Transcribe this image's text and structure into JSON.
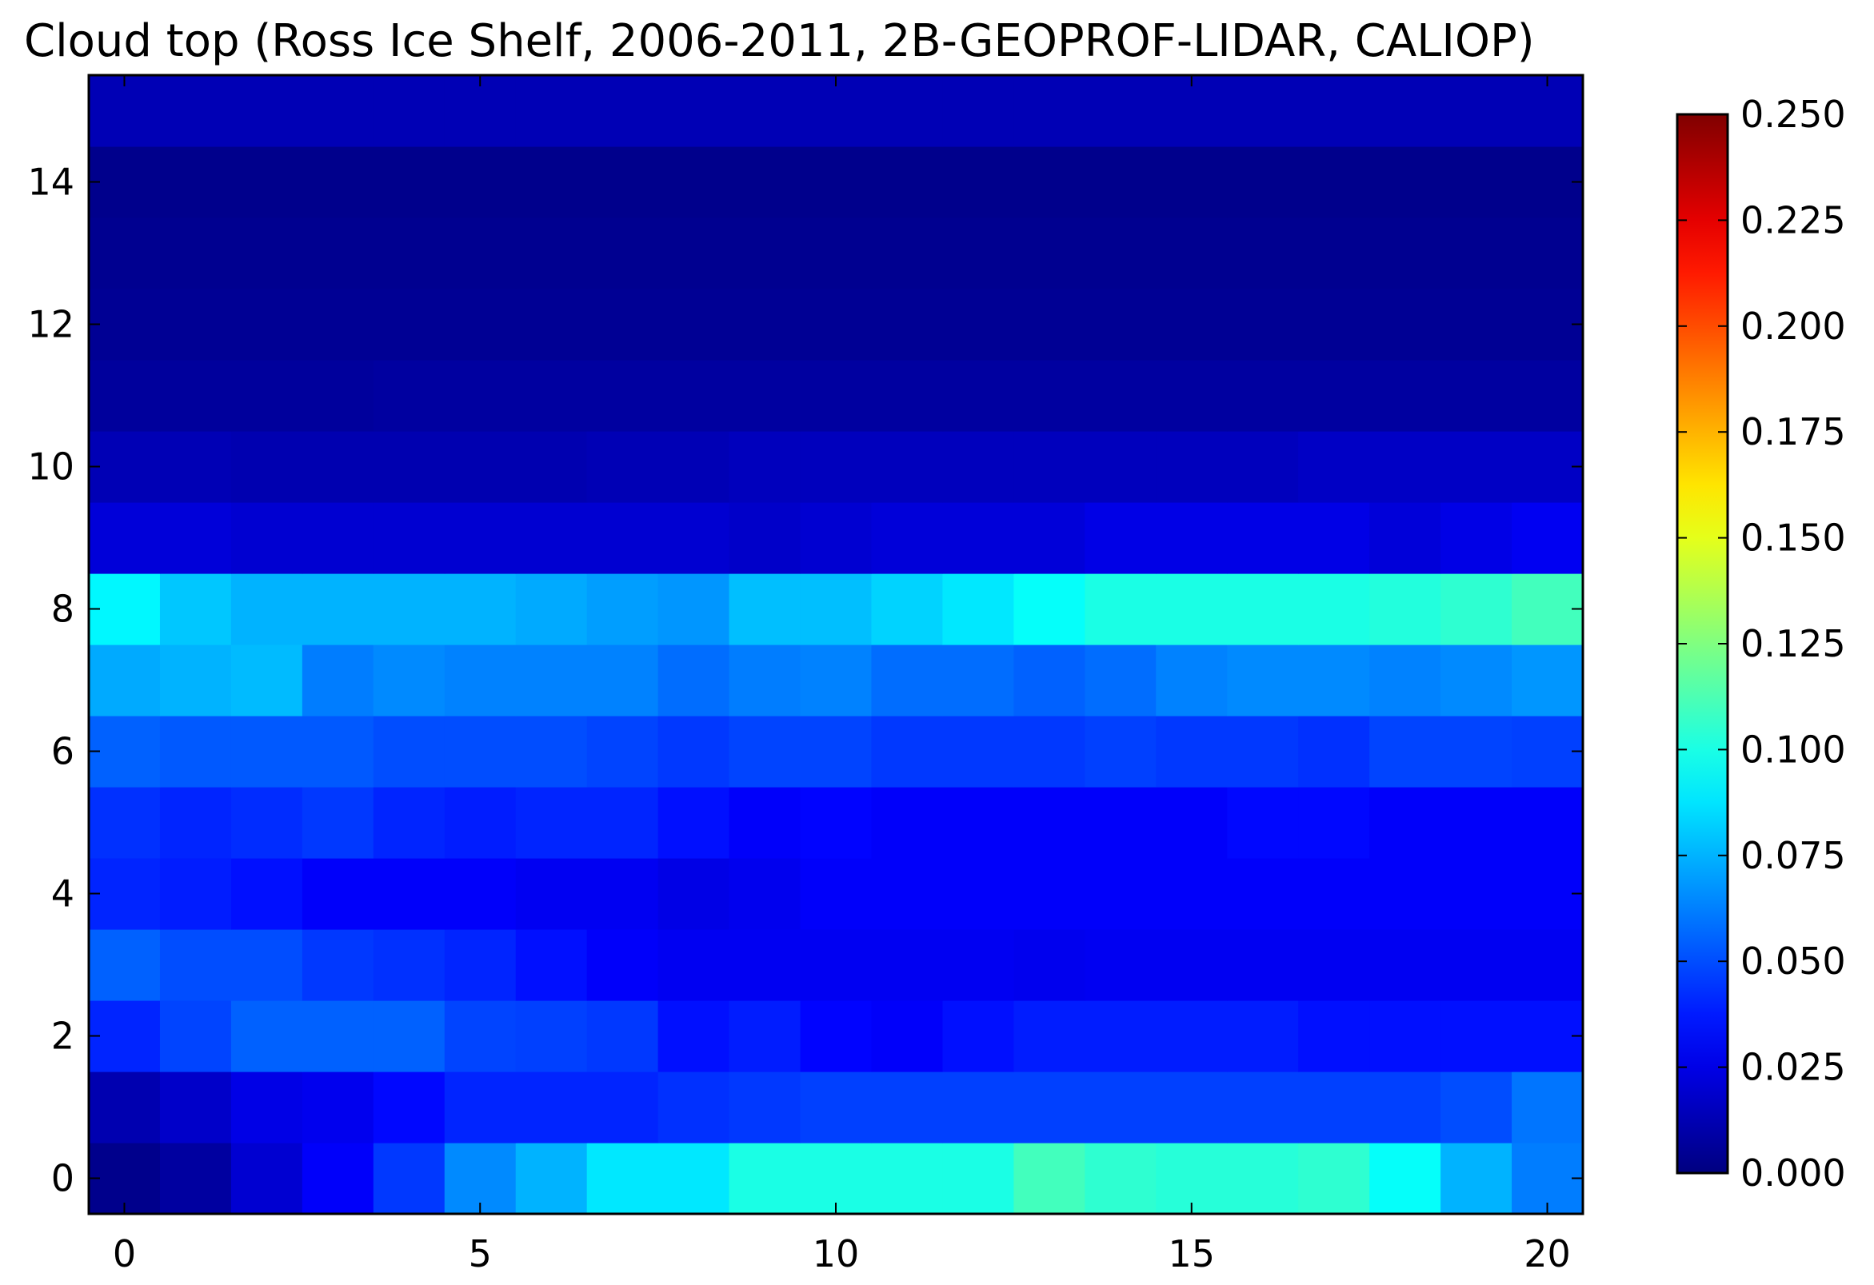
{
  "chart_data": {
    "type": "heatmap",
    "title": "Cloud top (Ross Ice Shelf, 2006-2011, 2B-GEOPROF-LIDAR, CALIOP)",
    "xlabel": "",
    "ylabel": "",
    "x": [
      0,
      1,
      2,
      3,
      4,
      5,
      6,
      7,
      8,
      9,
      10,
      11,
      12,
      13,
      14,
      15,
      16,
      17,
      18,
      19,
      20
    ],
    "y": [
      0,
      1,
      2,
      3,
      4,
      5,
      6,
      7,
      8,
      9,
      10,
      11,
      12,
      13,
      14,
      15
    ],
    "xlim": [
      -0.5,
      20.5
    ],
    "ylim": [
      -0.5,
      15.5
    ],
    "x_ticks": [
      0,
      5,
      10,
      15,
      20
    ],
    "x_tick_labels": [
      "0",
      "5",
      "10",
      "15",
      "20"
    ],
    "y_ticks": [
      0,
      2,
      4,
      6,
      8,
      10,
      12,
      14
    ],
    "y_tick_labels": [
      "0",
      "2",
      "4",
      "6",
      "8",
      "10",
      "12",
      "14"
    ],
    "colormap": "jet",
    "vmin": 0.0,
    "vmax": 0.25,
    "colorbar_ticks": [
      0.0,
      0.025,
      0.05,
      0.075,
      0.1,
      0.125,
      0.15,
      0.175,
      0.2,
      0.225,
      0.25
    ],
    "colorbar_tick_labels": [
      "0.000",
      "0.025",
      "0.050",
      "0.075",
      "0.100",
      "0.125",
      "0.150",
      "0.175",
      "0.200",
      "0.225",
      "0.250"
    ],
    "grid": false,
    "values": [
      [
        0.003,
        0.008,
        0.02,
        0.03,
        0.045,
        0.065,
        0.075,
        0.088,
        0.088,
        0.1,
        0.1,
        0.1,
        0.1,
        0.11,
        0.105,
        0.103,
        0.103,
        0.105,
        0.095,
        0.075,
        0.062
      ],
      [
        0.012,
        0.018,
        0.025,
        0.027,
        0.033,
        0.04,
        0.04,
        0.04,
        0.043,
        0.045,
        0.047,
        0.047,
        0.047,
        0.047,
        0.047,
        0.047,
        0.047,
        0.047,
        0.047,
        0.05,
        0.06
      ],
      [
        0.04,
        0.048,
        0.055,
        0.055,
        0.055,
        0.048,
        0.047,
        0.045,
        0.035,
        0.038,
        0.032,
        0.03,
        0.035,
        0.038,
        0.038,
        0.038,
        0.038,
        0.035,
        0.035,
        0.035,
        0.035
      ],
      [
        0.055,
        0.05,
        0.05,
        0.045,
        0.043,
        0.04,
        0.035,
        0.03,
        0.028,
        0.028,
        0.028,
        0.028,
        0.028,
        0.027,
        0.028,
        0.028,
        0.028,
        0.028,
        0.028,
        0.028,
        0.028
      ],
      [
        0.04,
        0.038,
        0.035,
        0.03,
        0.03,
        0.03,
        0.028,
        0.028,
        0.025,
        0.027,
        0.03,
        0.03,
        0.03,
        0.03,
        0.03,
        0.03,
        0.03,
        0.03,
        0.03,
        0.03,
        0.03
      ],
      [
        0.043,
        0.04,
        0.042,
        0.045,
        0.04,
        0.038,
        0.04,
        0.04,
        0.035,
        0.03,
        0.032,
        0.03,
        0.03,
        0.03,
        0.03,
        0.03,
        0.033,
        0.033,
        0.03,
        0.03,
        0.03
      ],
      [
        0.055,
        0.053,
        0.053,
        0.053,
        0.05,
        0.05,
        0.05,
        0.048,
        0.045,
        0.048,
        0.048,
        0.045,
        0.045,
        0.045,
        0.047,
        0.045,
        0.045,
        0.043,
        0.048,
        0.048,
        0.047
      ],
      [
        0.073,
        0.075,
        0.077,
        0.062,
        0.065,
        0.063,
        0.063,
        0.063,
        0.058,
        0.062,
        0.063,
        0.058,
        0.058,
        0.055,
        0.058,
        0.063,
        0.065,
        0.065,
        0.063,
        0.065,
        0.068
      ],
      [
        0.092,
        0.08,
        0.075,
        0.075,
        0.075,
        0.075,
        0.073,
        0.07,
        0.068,
        0.078,
        0.078,
        0.083,
        0.088,
        0.095,
        0.1,
        0.1,
        0.1,
        0.1,
        0.102,
        0.105,
        0.11
      ],
      [
        0.022,
        0.022,
        0.02,
        0.02,
        0.02,
        0.02,
        0.02,
        0.02,
        0.02,
        0.018,
        0.02,
        0.022,
        0.022,
        0.022,
        0.025,
        0.025,
        0.025,
        0.025,
        0.022,
        0.025,
        0.028
      ],
      [
        0.013,
        0.013,
        0.012,
        0.012,
        0.012,
        0.012,
        0.012,
        0.013,
        0.013,
        0.015,
        0.015,
        0.015,
        0.015,
        0.015,
        0.015,
        0.015,
        0.015,
        0.017,
        0.017,
        0.017,
        0.017
      ],
      [
        0.007,
        0.007,
        0.007,
        0.007,
        0.008,
        0.008,
        0.008,
        0.008,
        0.008,
        0.008,
        0.008,
        0.008,
        0.008,
        0.008,
        0.008,
        0.008,
        0.008,
        0.008,
        0.008,
        0.008,
        0.008
      ],
      [
        0.005,
        0.005,
        0.005,
        0.005,
        0.005,
        0.005,
        0.005,
        0.005,
        0.005,
        0.005,
        0.005,
        0.005,
        0.005,
        0.005,
        0.005,
        0.005,
        0.005,
        0.005,
        0.005,
        0.005,
        0.005
      ],
      [
        0.004,
        0.004,
        0.004,
        0.004,
        0.004,
        0.004,
        0.004,
        0.004,
        0.004,
        0.004,
        0.004,
        0.004,
        0.004,
        0.004,
        0.004,
        0.004,
        0.004,
        0.004,
        0.004,
        0.004,
        0.004
      ],
      [
        0.003,
        0.003,
        0.003,
        0.003,
        0.003,
        0.003,
        0.003,
        0.003,
        0.003,
        0.003,
        0.003,
        0.003,
        0.003,
        0.003,
        0.003,
        0.003,
        0.003,
        0.003,
        0.003,
        0.003,
        0.003
      ],
      [
        0.013,
        0.013,
        0.013,
        0.013,
        0.013,
        0.013,
        0.013,
        0.013,
        0.013,
        0.013,
        0.013,
        0.013,
        0.013,
        0.013,
        0.013,
        0.013,
        0.013,
        0.013,
        0.013,
        0.013,
        0.013
      ]
    ]
  }
}
